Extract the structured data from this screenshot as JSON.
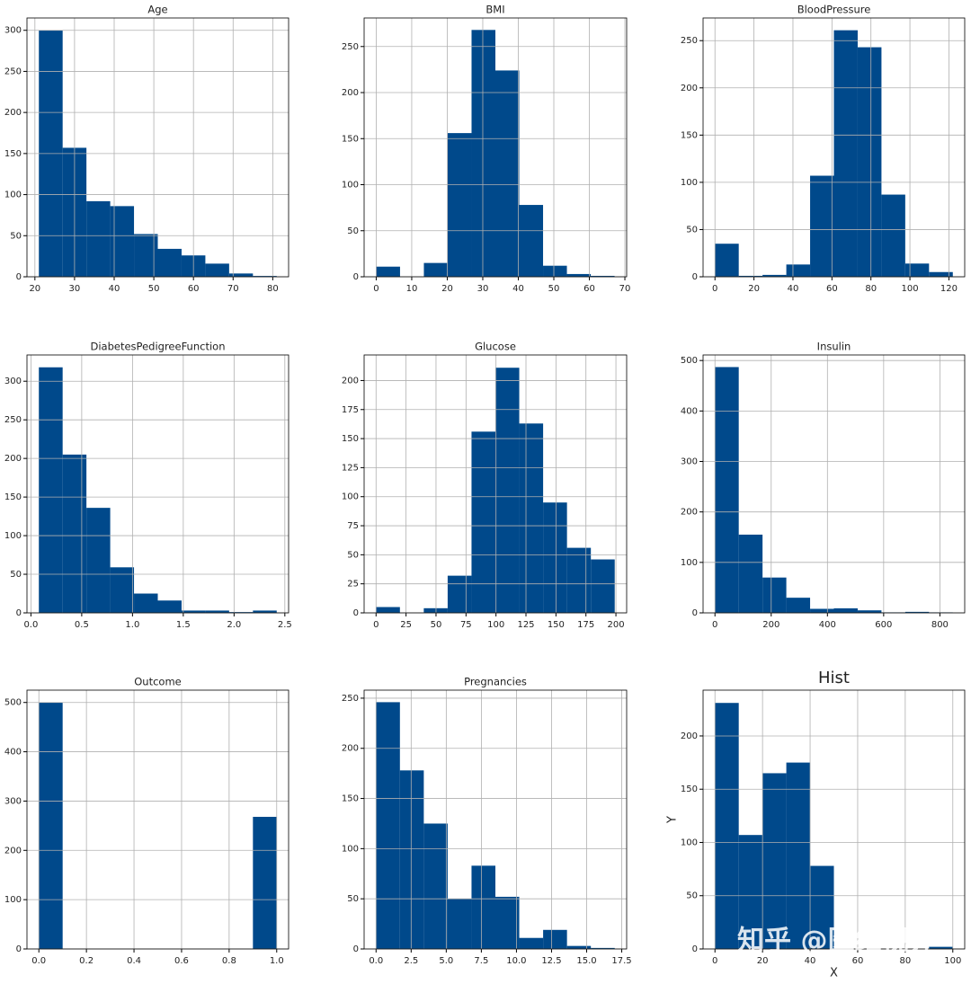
{
  "chart_data": [
    {
      "type": "histogram",
      "title": "Age",
      "color": "#00498b",
      "grid": true,
      "bins": [
        21,
        27,
        33,
        39,
        45,
        51,
        57,
        63,
        69,
        75,
        81
      ],
      "values": [
        300,
        157,
        92,
        86,
        52,
        34,
        26,
        16,
        4,
        1
      ],
      "xlim": [
        18,
        84
      ],
      "xticks": [
        20,
        30,
        40,
        50,
        60,
        70,
        80
      ],
      "ylim": [
        0,
        315
      ],
      "yticks": [
        0,
        50,
        100,
        150,
        200,
        250,
        300
      ]
    },
    {
      "type": "histogram",
      "title": "BMI",
      "color": "#00498b",
      "grid": true,
      "bins": [
        0,
        6.71,
        13.42,
        20.13,
        26.84,
        33.55,
        40.26,
        46.97,
        53.68,
        60.39,
        67.1
      ],
      "values": [
        11,
        0,
        15,
        156,
        268,
        224,
        78,
        12,
        3,
        1
      ],
      "xlim": [
        -3.4,
        70.5
      ],
      "xticks": [
        0,
        10,
        20,
        30,
        40,
        50,
        60,
        70
      ],
      "ylim": [
        0,
        281
      ],
      "yticks": [
        0,
        50,
        100,
        150,
        200,
        250
      ]
    },
    {
      "type": "histogram",
      "title": "BloodPressure",
      "color": "#00498b",
      "grid": true,
      "bins": [
        0,
        12.2,
        24.4,
        36.6,
        48.8,
        61,
        73.2,
        85.4,
        97.6,
        109.8,
        122
      ],
      "values": [
        35,
        1,
        2,
        13,
        107,
        261,
        243,
        87,
        14,
        5
      ],
      "xlim": [
        -6.1,
        128.1
      ],
      "xticks": [
        0,
        20,
        40,
        60,
        80,
        100,
        120
      ],
      "ylim": [
        0,
        274
      ],
      "yticks": [
        0,
        50,
        100,
        150,
        200,
        250
      ]
    },
    {
      "type": "histogram",
      "title": "DiabetesPedigreeFunction",
      "color": "#00498b",
      "grid": true,
      "bins": [
        0.078,
        0.3122,
        0.5464,
        0.7806,
        1.0148,
        1.249,
        1.4832,
        1.7174,
        1.9516,
        2.1858,
        2.42
      ],
      "values": [
        318,
        205,
        136,
        59,
        25,
        16,
        3,
        3,
        1,
        3
      ],
      "xlim": [
        -0.039,
        2.537
      ],
      "xticks": [
        {
          "value": 0,
          "label": "0.0"
        },
        0.5,
        {
          "value": 1,
          "label": "1.0"
        },
        1.5,
        {
          "value": 2,
          "label": "2.0"
        },
        2.5
      ],
      "ylim": [
        0,
        334
      ],
      "yticks": [
        0,
        50,
        100,
        150,
        200,
        250,
        300
      ]
    },
    {
      "type": "histogram",
      "title": "Glucose",
      "color": "#00498b",
      "grid": true,
      "bins": [
        0,
        19.9,
        39.8,
        59.7,
        79.6,
        99.5,
        119.4,
        139.3,
        159.2,
        179.1,
        199
      ],
      "values": [
        5,
        0,
        4,
        32,
        156,
        211,
        163,
        95,
        56,
        46
      ],
      "xlim": [
        -9.95,
        208.95
      ],
      "xticks": [
        0,
        25,
        50,
        75,
        100,
        125,
        150,
        175,
        200
      ],
      "ylim": [
        0,
        222
      ],
      "yticks": [
        0,
        25,
        50,
        75,
        100,
        125,
        150,
        175,
        200
      ]
    },
    {
      "type": "histogram",
      "title": "Insulin",
      "color": "#00498b",
      "grid": true,
      "bins": [
        0,
        84.6,
        169.2,
        253.8,
        338.4,
        423,
        507.6,
        592.2,
        676.8,
        761.4,
        846
      ],
      "values": [
        487,
        155,
        70,
        30,
        8,
        9,
        5,
        1,
        2,
        1
      ],
      "xlim": [
        -42.3,
        888.3
      ],
      "xticks": [
        0,
        200,
        400,
        600,
        800
      ],
      "ylim": [
        0,
        511
      ],
      "yticks": [
        0,
        100,
        200,
        300,
        400,
        500
      ]
    },
    {
      "type": "histogram",
      "title": "Outcome",
      "color": "#00498b",
      "grid": true,
      "bins": [
        0,
        0.1,
        0.2,
        0.3,
        0.4,
        0.5,
        0.6,
        0.7,
        0.8,
        0.9,
        1
      ],
      "values": [
        500,
        0,
        0,
        0,
        0,
        0,
        0,
        0,
        0,
        268
      ],
      "xlim": [
        -0.05,
        1.05
      ],
      "xticks": [
        {
          "value": 0,
          "label": "0.0"
        },
        0.2,
        0.4,
        0.6,
        0.8,
        {
          "value": 1,
          "label": "1.0"
        }
      ],
      "ylim": [
        0,
        525
      ],
      "yticks": [
        0,
        100,
        200,
        300,
        400,
        500
      ]
    },
    {
      "type": "histogram",
      "title": "Pregnancies",
      "color": "#00498b",
      "grid": true,
      "bins": [
        0,
        1.7,
        3.4,
        5.1,
        6.8,
        8.5,
        10.2,
        11.9,
        13.6,
        15.3,
        17
      ],
      "values": [
        246,
        178,
        125,
        50,
        83,
        52,
        11,
        19,
        3,
        1
      ],
      "xlim": [
        -0.85,
        17.85
      ],
      "xticks": [
        {
          "value": 0,
          "label": "0.0"
        },
        2.5,
        {
          "value": 5,
          "label": "5.0"
        },
        7.5,
        {
          "value": 10,
          "label": "10.0"
        },
        12.5,
        {
          "value": 15,
          "label": "15.0"
        },
        17.5
      ],
      "ylim": [
        0,
        258
      ],
      "yticks": [
        0,
        50,
        100,
        150,
        200,
        250
      ]
    },
    {
      "type": "histogram",
      "title": "Hist",
      "x_label": "X",
      "y_label": "Y",
      "color": "#00498b",
      "grid": true,
      "bins": [
        0,
        10,
        20,
        30,
        40,
        50,
        60,
        70,
        80,
        90,
        100
      ],
      "values": [
        231,
        107,
        165,
        175,
        78,
        0,
        0,
        0,
        0,
        2
      ],
      "xlim": [
        -5,
        105
      ],
      "xticks": [
        0,
        20,
        40,
        60,
        80,
        100
      ],
      "ylim": [
        0,
        243
      ],
      "yticks": [
        0,
        50,
        100,
        150,
        200
      ]
    }
  ],
  "watermark": "知乎 @医维视界"
}
